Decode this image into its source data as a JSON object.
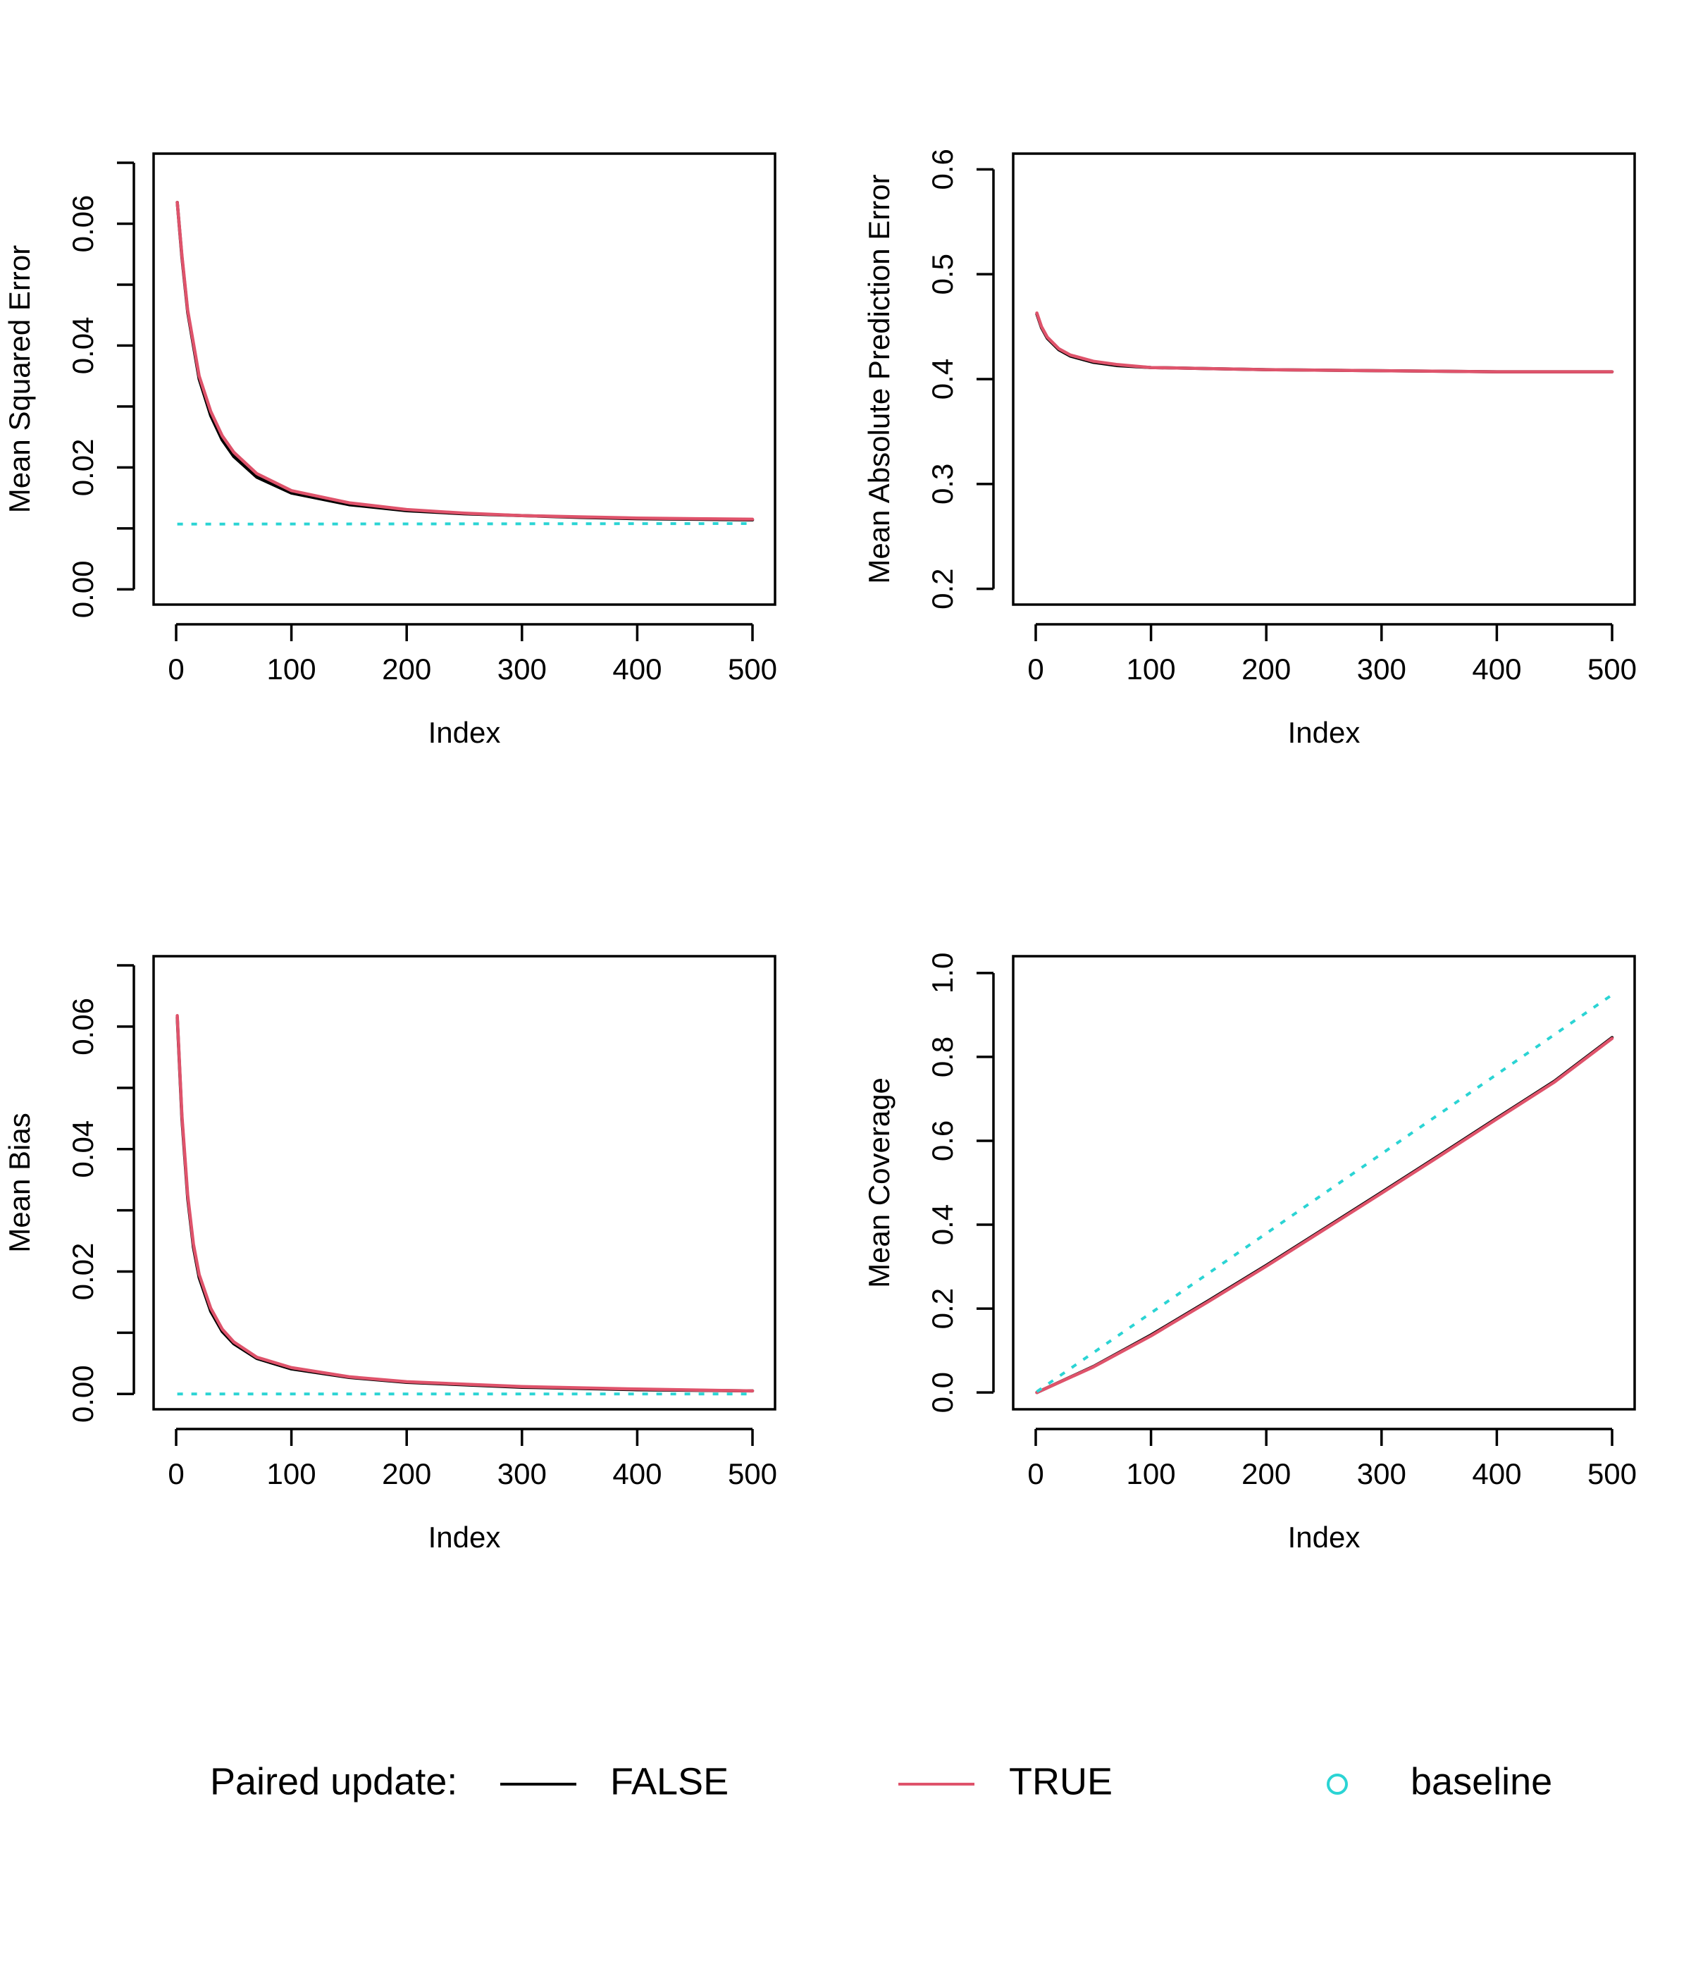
{
  "colors": {
    "false": "#000000",
    "true": "#DF536B",
    "baseline": "#2BD4D4"
  },
  "legend": {
    "title": "Paired update:",
    "items": [
      {
        "label": "FALSE",
        "type": "line",
        "color": "#000000"
      },
      {
        "label": "TRUE",
        "type": "line",
        "color": "#DF536B"
      },
      {
        "label": "baseline",
        "type": "point",
        "color": "#2BD4D4"
      }
    ]
  },
  "chart_data": [
    {
      "type": "line",
      "xlabel": "Index",
      "ylabel": "Mean Squared Error",
      "xlim": [
        0,
        500
      ],
      "ylim": [
        -0.0025,
        0.0715
      ],
      "xticks": [
        0,
        100,
        200,
        300,
        400,
        500
      ],
      "yticks": [
        0,
        0.01,
        0.02,
        0.03,
        0.04,
        0.05,
        0.06,
        0.07
      ],
      "ytick_labels": [
        "0.00",
        "",
        "0.02",
        "",
        "0.04",
        "",
        "0.06",
        ""
      ],
      "series": [
        {
          "name": "FALSE",
          "x": [
            1,
            5,
            10,
            20,
            30,
            40,
            50,
            70,
            100,
            150,
            200,
            250,
            300,
            350,
            400,
            450,
            500
          ],
          "y": [
            0.0635,
            0.0545,
            0.0455,
            0.0345,
            0.0285,
            0.0245,
            0.0218,
            0.0184,
            0.0158,
            0.0139,
            0.0129,
            0.0124,
            0.0121,
            0.0118,
            0.0116,
            0.0115,
            0.0114
          ]
        },
        {
          "name": "TRUE",
          "x": [
            1,
            5,
            10,
            20,
            30,
            40,
            50,
            70,
            100,
            150,
            200,
            250,
            300,
            350,
            400,
            450,
            500
          ],
          "y": [
            0.0635,
            0.0548,
            0.0458,
            0.035,
            0.0292,
            0.0252,
            0.0225,
            0.019,
            0.0162,
            0.0142,
            0.0131,
            0.0125,
            0.0121,
            0.0119,
            0.0117,
            0.0116,
            0.0115
          ]
        },
        {
          "name": "baseline",
          "x": [
            1,
            500
          ],
          "y": [
            0.0107,
            0.0108
          ],
          "dashed": true
        }
      ]
    },
    {
      "type": "line",
      "xlabel": "Index",
      "ylabel": "Mean Absolute Prediction Error",
      "xlim": [
        0,
        500
      ],
      "ylim": [
        0.185,
        0.615
      ],
      "xticks": [
        0,
        100,
        200,
        300,
        400,
        500
      ],
      "yticks": [
        0.2,
        0.3,
        0.4,
        0.5,
        0.6
      ],
      "ytick_labels": [
        "0.2",
        "0.3",
        "0.4",
        "0.5",
        "0.6"
      ],
      "series": [
        {
          "name": "FALSE",
          "x": [
            1,
            5,
            10,
            20,
            30,
            50,
            70,
            100,
            150,
            200,
            300,
            400,
            500
          ],
          "y": [
            0.462,
            0.449,
            0.439,
            0.428,
            0.422,
            0.416,
            0.413,
            0.411,
            0.41,
            0.409,
            0.408,
            0.407,
            0.407
          ]
        },
        {
          "name": "TRUE",
          "x": [
            1,
            5,
            10,
            20,
            30,
            50,
            70,
            100,
            150,
            200,
            300,
            400,
            500
          ],
          "y": [
            0.463,
            0.45,
            0.44,
            0.429,
            0.423,
            0.417,
            0.414,
            0.411,
            0.41,
            0.409,
            0.408,
            0.407,
            0.407
          ]
        }
      ]
    },
    {
      "type": "line",
      "xlabel": "Index",
      "ylabel": "Mean Bias",
      "xlim": [
        0,
        500
      ],
      "ylim": [
        -0.0025,
        0.0715
      ],
      "xticks": [
        0,
        100,
        200,
        300,
        400,
        500
      ],
      "yticks": [
        0,
        0.01,
        0.02,
        0.03,
        0.04,
        0.05,
        0.06,
        0.07
      ],
      "ytick_labels": [
        "0.00",
        "",
        "0.02",
        "",
        "0.04",
        "",
        "0.06",
        ""
      ],
      "series": [
        {
          "name": "FALSE",
          "x": [
            1,
            5,
            10,
            15,
            20,
            30,
            40,
            50,
            70,
            100,
            150,
            200,
            300,
            400,
            500
          ],
          "y": [
            0.0615,
            0.045,
            0.032,
            0.024,
            0.019,
            0.0135,
            0.0102,
            0.0082,
            0.0058,
            0.0041,
            0.0027,
            0.0019,
            0.0011,
            0.0007,
            0.0005
          ]
        },
        {
          "name": "TRUE",
          "x": [
            1,
            5,
            10,
            15,
            20,
            30,
            40,
            50,
            70,
            100,
            150,
            200,
            300,
            400,
            500
          ],
          "y": [
            0.0618,
            0.0455,
            0.0325,
            0.0245,
            0.0195,
            0.014,
            0.0106,
            0.0085,
            0.006,
            0.0043,
            0.0028,
            0.002,
            0.0012,
            0.0008,
            0.0005
          ]
        },
        {
          "name": "baseline",
          "x": [
            1,
            500
          ],
          "y": [
            0.0,
            0.0
          ],
          "dashed": true
        }
      ]
    },
    {
      "type": "line",
      "xlabel": "Index",
      "ylabel": "Mean Coverage",
      "xlim": [
        0,
        500
      ],
      "ylim": [
        -0.04,
        1.04
      ],
      "xticks": [
        0,
        100,
        200,
        300,
        400,
        500
      ],
      "yticks": [
        0,
        0.2,
        0.4,
        0.6,
        0.8,
        1.0
      ],
      "ytick_labels": [
        "0.0",
        "0.2",
        "0.4",
        "0.6",
        "0.8",
        "1.0"
      ],
      "series": [
        {
          "name": "FALSE",
          "x": [
            1,
            50,
            100,
            150,
            200,
            250,
            300,
            350,
            400,
            450,
            500
          ],
          "y": [
            0.0,
            0.062,
            0.137,
            0.219,
            0.303,
            0.39,
            0.477,
            0.565,
            0.654,
            0.742,
            0.846
          ]
        },
        {
          "name": "TRUE",
          "x": [
            1,
            50,
            100,
            150,
            200,
            250,
            300,
            350,
            400,
            450,
            500
          ],
          "y": [
            0.0,
            0.061,
            0.135,
            0.217,
            0.301,
            0.388,
            0.475,
            0.563,
            0.652,
            0.74,
            0.844
          ]
        },
        {
          "name": "baseline",
          "x": [
            1,
            500
          ],
          "y": [
            0.002,
            0.948
          ],
          "dashed": true
        }
      ]
    }
  ]
}
